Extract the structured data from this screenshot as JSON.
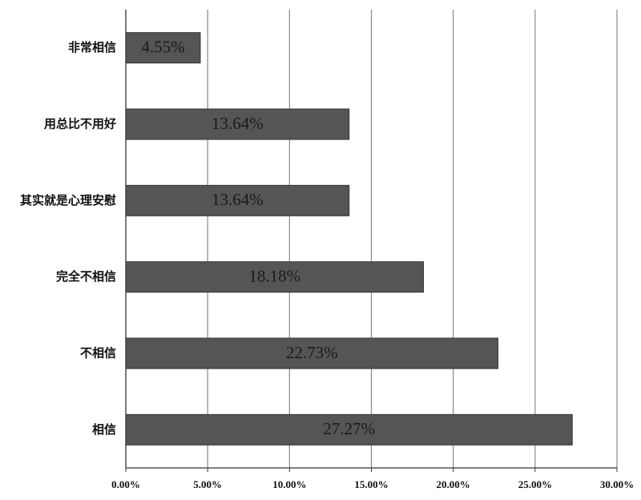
{
  "chart_data": {
    "type": "hbar",
    "categories": [
      "非常相信",
      "用总比不用好",
      "其实就是心理安慰",
      "完全不相信",
      "不相信",
      "相信"
    ],
    "values": [
      4.55,
      13.64,
      13.64,
      18.18,
      22.73,
      27.27
    ],
    "value_labels": [
      "4.55%",
      "13.64%",
      "13.64%",
      "18.18%",
      "22.73%",
      "27.27%"
    ],
    "color": "#555555",
    "xlim": [
      0,
      30
    ],
    "xticks": [
      {
        "value": 0,
        "label": "0.00%"
      },
      {
        "value": 5,
        "label": "5.00%"
      },
      {
        "value": 10,
        "label": "10.00%"
      },
      {
        "value": 15,
        "label": "15.00%"
      },
      {
        "value": 20,
        "label": "20.00%"
      },
      {
        "value": 25,
        "label": "25.00%"
      },
      {
        "value": 30,
        "label": "30.00%"
      }
    ],
    "grid": true
  }
}
